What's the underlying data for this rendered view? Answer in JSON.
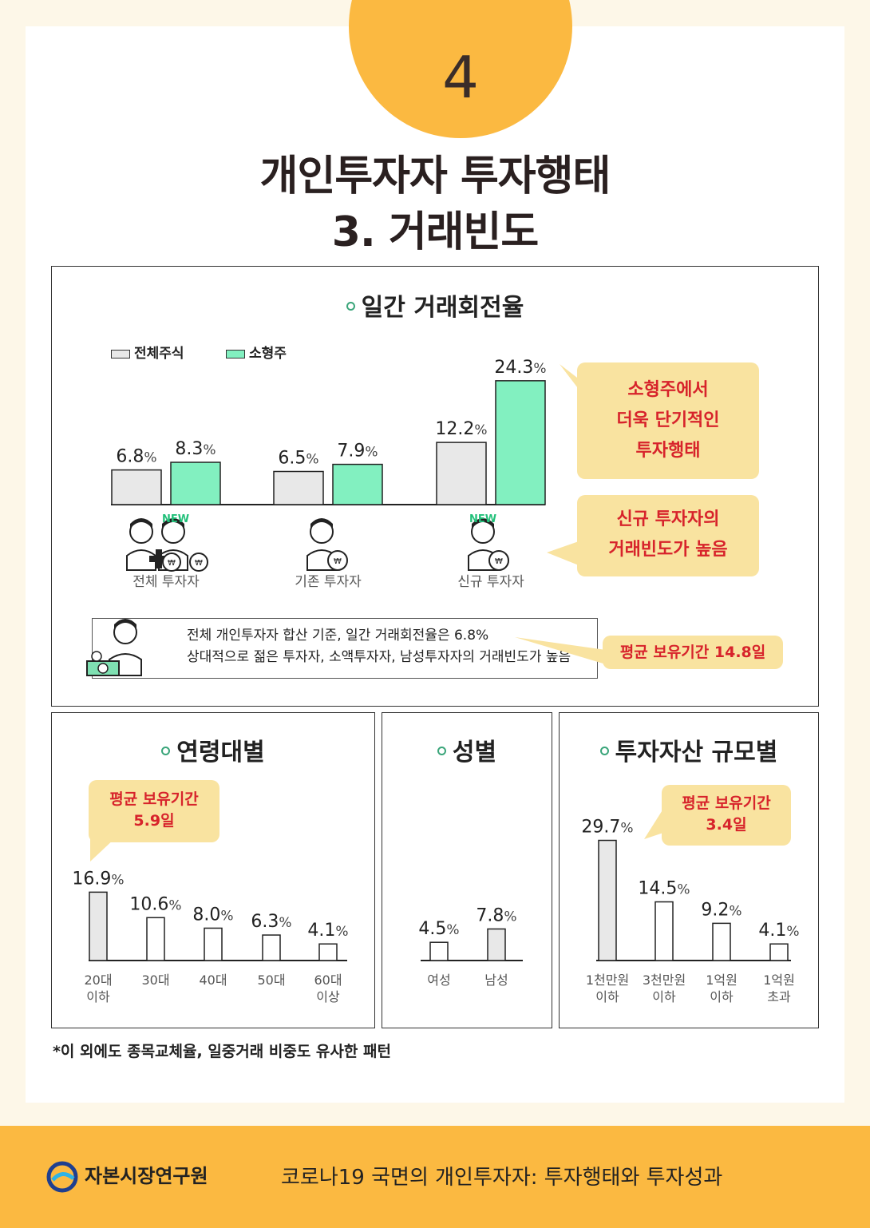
{
  "header": {
    "number": "4",
    "title_line1": "개인투자자 투자행태",
    "title_line2": "3. 거래빈도"
  },
  "colors": {
    "accent": "#fbb941",
    "small_cap": "#82f0c0",
    "all_stocks": "#e8e8e8",
    "callout_bg": "#f9e3a0",
    "callout_text": "#d7232b"
  },
  "top_panel": {
    "title": "일간 거래회전율",
    "legend": [
      "전체주식",
      "소형주"
    ],
    "callout_top": [
      "소형주에서",
      "더욱 단기적인",
      "투자행태"
    ],
    "callout_bottom": [
      "신규 투자자의",
      "거래빈도가 높음"
    ],
    "new_badge": "NEW",
    "note_line1": "전체 개인투자자 합산 기준, 일간 거래회전율은 6.8%",
    "note_line2": "상대적으로 젊은 투자자, 소액투자자, 남성투자자의 거래빈도가 높음",
    "note_callout": "평균 보유기간 14.8일"
  },
  "age_panel": {
    "title": "연령대별",
    "callout": [
      "평균 보유기간",
      "5.9일"
    ]
  },
  "gender_panel": {
    "title": "성별"
  },
  "asset_panel": {
    "title": "투자자산 규모별",
    "callout": [
      "평균 보유기간",
      "3.4일"
    ]
  },
  "chart_data": [
    {
      "type": "bar",
      "title": "일간 거래회전율",
      "categories": [
        "전체 투자자",
        "기존 투자자",
        "신규 투자자"
      ],
      "series": [
        {
          "name": "전체주식",
          "values": [
            6.8,
            6.5,
            12.2
          ]
        },
        {
          "name": "소형주",
          "values": [
            8.3,
            7.9,
            24.3
          ]
        }
      ],
      "unit": "%",
      "ylim": [
        0,
        26
      ],
      "legend": "top-left",
      "grid": false
    },
    {
      "type": "bar",
      "title": "연령대별",
      "categories": [
        "20대\n이하",
        "30대",
        "40대",
        "50대",
        "60대\n이상"
      ],
      "values": [
        16.9,
        10.6,
        8.0,
        6.3,
        4.1
      ],
      "unit": "%",
      "ylim": [
        0,
        30
      ]
    },
    {
      "type": "bar",
      "title": "성별",
      "categories": [
        "여성",
        "남성"
      ],
      "values": [
        4.5,
        7.8
      ],
      "unit": "%",
      "ylim": [
        0,
        30
      ]
    },
    {
      "type": "bar",
      "title": "투자자산 규모별",
      "categories": [
        "1천만원\n이하",
        "3천만원\n이하",
        "1억원\n이하",
        "1억원\n초과"
      ],
      "values": [
        29.7,
        14.5,
        9.2,
        4.1
      ],
      "unit": "%",
      "ylim": [
        0,
        30
      ]
    }
  ],
  "footnote": "*이 외에도 종목교체율, 일중거래 비중도 유사한 패턴",
  "footer": {
    "org": "자본시장연구원",
    "subtitle": "코로나19 국면의 개인투자자: 투자행태와 투자성과"
  }
}
